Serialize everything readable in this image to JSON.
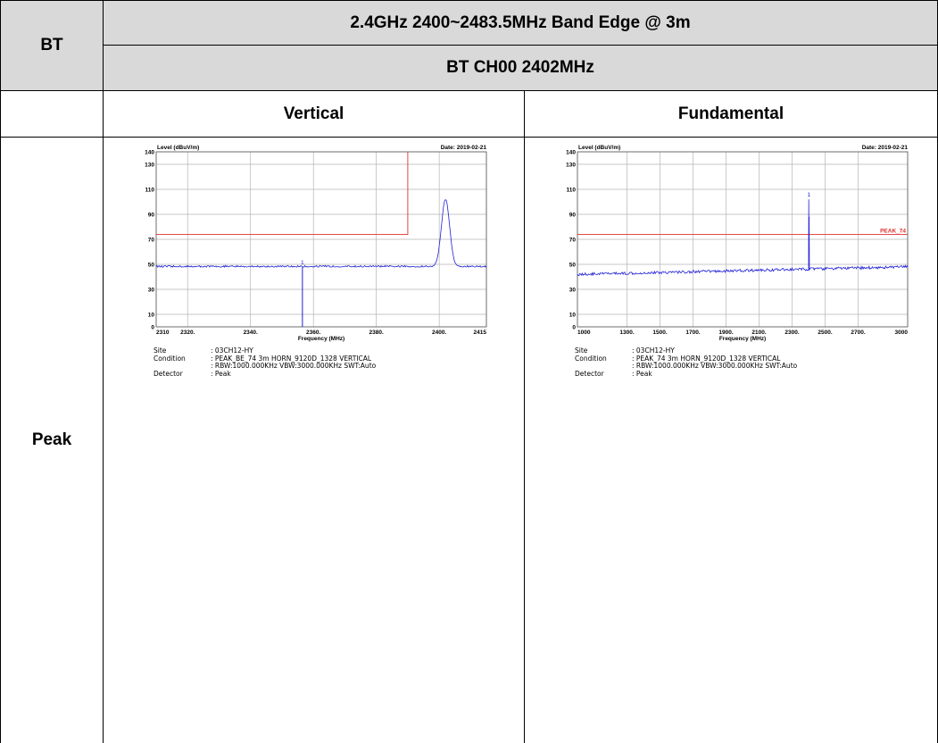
{
  "header": {
    "col1": "BT",
    "title": "2.4GHz 2400~2483.5MHz Band Edge @ 3m",
    "subtitle": "BT CH00 2402MHz"
  },
  "subheader": {
    "left": "Vertical",
    "right": "Fundamental"
  },
  "row_label": "Peak",
  "chart_data": [
    {
      "type": "line",
      "title": "",
      "ylabel": "Level (dBuV/m)",
      "xlabel": "Frequency (MHz)",
      "date": "Date: 2019-02-21",
      "xlim": [
        2310,
        2415
      ],
      "ylim": [
        0,
        140
      ],
      "x_ticks": [
        2310,
        2320,
        2340,
        2360,
        2380,
        2400,
        2415
      ],
      "x_tick_labels": [
        "2310",
        "2320.",
        "2340.",
        "2360.",
        "2380.",
        "2400.",
        "2415"
      ],
      "y_ticks": [
        0,
        10,
        30,
        50,
        70,
        90,
        110,
        130,
        140
      ],
      "grid": true,
      "noise_floor": 48,
      "limit_line": {
        "points": [
          [
            2310,
            74
          ],
          [
            2390,
            74
          ],
          [
            2390,
            140
          ]
        ],
        "label": ""
      },
      "peak": {
        "x": 2402,
        "y": 102,
        "width": 1.3
      },
      "marker": {
        "label": "1",
        "x": 2356.5,
        "y": 48
      },
      "info": [
        {
          "key": "Site",
          "value": ": 03CH12-HY"
        },
        {
          "key": "Condition",
          "value": ": PEAK_BE_74 3m HORN_9120D_1328 VERTICAL"
        },
        {
          "key": "",
          "value": ": RBW:1000.000KHz VBW:3000.000KHz SWT:Auto"
        },
        {
          "key": "Detector",
          "value": ": Peak"
        }
      ]
    },
    {
      "type": "line",
      "title": "",
      "ylabel": "Level (dBuV/m)",
      "xlabel": "Frequency (MHz)",
      "date": "Date: 2019-02-21",
      "xlim": [
        1000,
        3000
      ],
      "ylim": [
        0,
        140
      ],
      "x_ticks": [
        1000,
        1300,
        1500,
        1700,
        1900,
        2100,
        2300,
        2500,
        2700,
        3000
      ],
      "x_tick_labels": [
        "1000",
        "1300.",
        "1500.",
        "1700.",
        "1900.",
        "2100.",
        "2300.",
        "2500.",
        "2700.",
        "3000"
      ],
      "y_ticks": [
        0,
        10,
        30,
        50,
        70,
        90,
        110,
        130,
        140
      ],
      "grid": true,
      "noise_floor_start": 42,
      "noise_floor_end": 48,
      "limit_line": {
        "points": [
          [
            1000,
            74
          ],
          [
            3000,
            74
          ]
        ],
        "label": "PEAK_74"
      },
      "peak": {
        "x": 2402,
        "y": 102,
        "width": 2
      },
      "marker": {
        "label": "1",
        "x": 2402,
        "y": 102
      },
      "info": [
        {
          "key": "Site",
          "value": ": 03CH12-HY"
        },
        {
          "key": "Condition",
          "value": ": PEAK_74 3m HORN_9120D_1328 VERTICAL"
        },
        {
          "key": "",
          "value": ": RBW:1000.000KHz VBW:3000.000KHz SWT:Auto"
        },
        {
          "key": "Detector",
          "value": ": Peak"
        }
      ]
    }
  ]
}
